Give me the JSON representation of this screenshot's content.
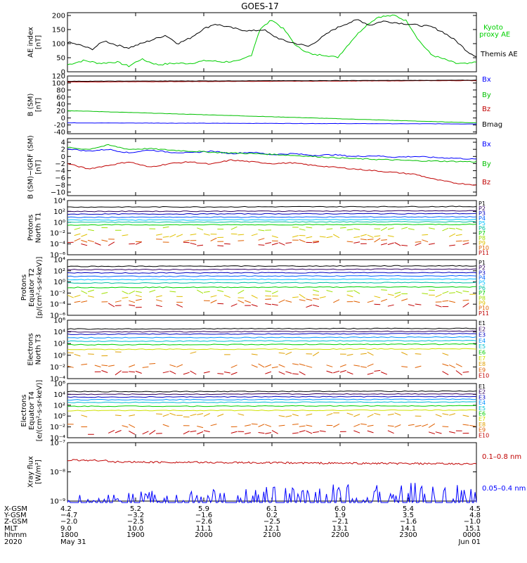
{
  "title": "GOES-17",
  "colors": {
    "black": "#000000",
    "blue": "#0000ff",
    "green": "#00c000",
    "red": "#c00000",
    "kyoto_green": "#00d000",
    "xray_red": "#c00000",
    "xray_blue": "#0000ff"
  },
  "chart_data": [
    {
      "type": "line",
      "panel": "ae",
      "ylabel": [
        "AE index",
        "[nT]"
      ],
      "ylim": [
        0,
        210
      ],
      "yticks": [
        0,
        50,
        100,
        150,
        200
      ],
      "ytick_labels": [
        "0",
        "50",
        "100",
        "150",
        "200"
      ],
      "series": [
        {
          "name": "Kyoto proxy AE",
          "legend": [
            "Kyoto",
            "proxy AE"
          ],
          "color": "#00d000",
          "x": [
            0,
            0.04,
            0.08,
            0.12,
            0.15,
            0.18,
            0.22,
            0.26,
            0.3,
            0.34,
            0.38,
            0.42,
            0.45,
            0.47,
            0.5,
            0.53,
            0.56,
            0.6,
            0.63,
            0.66,
            0.7,
            0.73,
            0.76,
            0.8,
            0.83,
            0.86,
            0.89,
            0.92,
            0.95,
            0.98,
            1
          ],
          "y": [
            25,
            40,
            30,
            35,
            20,
            45,
            25,
            30,
            30,
            40,
            35,
            38,
            60,
            150,
            185,
            150,
            90,
            60,
            60,
            50,
            120,
            165,
            195,
            200,
            180,
            110,
            60,
            45,
            30,
            28,
            35
          ]
        },
        {
          "name": "Themis AE",
          "legend": [
            "Themis AE"
          ],
          "color": "#000000",
          "x": [
            0,
            0.03,
            0.06,
            0.09,
            0.12,
            0.15,
            0.18,
            0.21,
            0.24,
            0.27,
            0.3,
            0.33,
            0.36,
            0.39,
            0.42,
            0.45,
            0.48,
            0.5,
            0.53,
            0.56,
            0.59,
            0.62,
            0.65,
            0.68,
            0.71,
            0.74,
            0.77,
            0.8,
            0.83,
            0.86,
            0.89,
            0.92,
            0.95,
            0.98,
            1
          ],
          "y": [
            105,
            95,
            80,
            110,
            95,
            85,
            100,
            115,
            130,
            100,
            120,
            150,
            170,
            160,
            150,
            145,
            150,
            130,
            110,
            100,
            90,
            120,
            150,
            170,
            185,
            165,
            180,
            175,
            170,
            165,
            160,
            140,
            110,
            70,
            55
          ]
        }
      ]
    },
    {
      "type": "line",
      "panel": "bsm",
      "ylabel": [
        "B (SM)",
        "[nT]"
      ],
      "ylim": [
        -45,
        120
      ],
      "yticks": [
        -40,
        -20,
        0,
        20,
        40,
        60,
        80,
        100,
        120
      ],
      "ytick_labels": [
        "-40",
        "-20",
        "0",
        "20",
        "40",
        "60",
        "80",
        "100",
        "120"
      ],
      "series": [
        {
          "name": "Bx",
          "color": "#0000ff",
          "x": [
            0,
            1
          ],
          "y": [
            -14,
            -17
          ]
        },
        {
          "name": "By",
          "color": "#00c000",
          "x": [
            0,
            1
          ],
          "y": [
            21,
            -14
          ]
        },
        {
          "name": "Bz",
          "color": "#c00000",
          "x": [
            0,
            1
          ],
          "y": [
            103,
            107
          ]
        },
        {
          "name": "Bmag",
          "color": "#000000",
          "x": [
            0,
            1
          ],
          "y": [
            105,
            108
          ]
        }
      ]
    },
    {
      "type": "line",
      "panel": "bigrf",
      "ylabel": [
        "B (SM)−IGRF (SM)",
        "[nT]"
      ],
      "ylim": [
        -11,
        5
      ],
      "yticks": [
        -10,
        -8,
        -6,
        -4,
        -2,
        0,
        2,
        4
      ],
      "ytick_labels": [
        "−10",
        "−8",
        "−6",
        "−4",
        "−2",
        "0",
        "2",
        "4"
      ],
      "series": [
        {
          "name": "Bx",
          "color": "#0000ff",
          "x": [
            0,
            0.05,
            0.1,
            0.15,
            0.2,
            0.25,
            0.3,
            0.35,
            0.4,
            0.45,
            0.5,
            0.55,
            0.6,
            0.65,
            0.7,
            0.75,
            0.8,
            0.85,
            0.9,
            0.95,
            1
          ],
          "y": [
            2.2,
            1.5,
            2.0,
            1.0,
            1.8,
            1.2,
            1.0,
            1.5,
            0.8,
            1.2,
            0.5,
            0.8,
            0.3,
            0.5,
            0.0,
            0.2,
            -0.2,
            0.0,
            -0.3,
            -0.5,
            -0.8
          ]
        },
        {
          "name": "By",
          "color": "#00c000",
          "x": [
            0,
            0.05,
            0.1,
            0.15,
            0.2,
            0.25,
            0.3,
            0.35,
            0.4,
            0.45,
            0.5,
            0.55,
            0.6,
            0.65,
            0.7,
            0.75,
            0.8,
            0.85,
            0.9,
            0.95,
            1
          ],
          "y": [
            2.5,
            2.0,
            3.2,
            2.0,
            2.2,
            1.8,
            1.5,
            1.2,
            1.0,
            0.8,
            0.6,
            0.3,
            0.0,
            -0.3,
            -0.6,
            -0.8,
            -1.0,
            -1.2,
            -1.3,
            -1.4,
            -1.5
          ]
        },
        {
          "name": "Bz",
          "color": "#c00000",
          "x": [
            0,
            0.05,
            0.1,
            0.15,
            0.2,
            0.25,
            0.3,
            0.35,
            0.4,
            0.45,
            0.5,
            0.55,
            0.6,
            0.65,
            0.7,
            0.75,
            0.8,
            0.85,
            0.9,
            0.95,
            1
          ],
          "y": [
            -2.0,
            -3.5,
            -2.5,
            -1.5,
            -3.0,
            -2.0,
            -1.5,
            -2.2,
            -1.0,
            -1.5,
            -2.0,
            -1.8,
            -2.5,
            -3.0,
            -3.5,
            -4.0,
            -4.5,
            -5.0,
            -6.5,
            -7.5,
            -8.0
          ]
        }
      ]
    },
    {
      "type": "line",
      "panel": "pn",
      "log": true,
      "ylabel": [
        "Protons",
        "North T1"
      ],
      "ylim_log10": [
        -6,
        4
      ],
      "yticks_log10": [
        -6,
        -4,
        -2,
        0,
        2,
        4
      ],
      "levels_log10": [
        2.8,
        2.0,
        1.5,
        0.9,
        0.4,
        0.0,
        -0.5,
        -1.2,
        -2.5,
        -3.3,
        -4.0
      ],
      "series_names": [
        "P1",
        "P2",
        "P3",
        "P4",
        "P5",
        "P6",
        "P7",
        "P8",
        "P9",
        "P10",
        "P11"
      ],
      "series_colors": [
        "#000000",
        "#300060",
        "#0000c0",
        "#0060ff",
        "#00c0ff",
        "#00c0a0",
        "#00d000",
        "#a0e000",
        "#e0c000",
        "#e06000",
        "#c00000"
      ]
    },
    {
      "type": "line",
      "panel": "pe",
      "log": true,
      "ylabel": [
        "Protons",
        "Equator T2",
        "[p/(cm²-s-sr-keV)]"
      ],
      "ylim_log10": [
        -6,
        4
      ],
      "yticks_log10": [
        -6,
        -4,
        -2,
        0,
        2,
        4
      ],
      "levels_log10": [
        2.8,
        2.2,
        1.6,
        1.0,
        0.4,
        -0.2,
        -1.0,
        -1.8,
        -2.6,
        -3.4,
        -4.2
      ],
      "series_names": [
        "P1",
        "P2",
        "P3",
        "P4",
        "P5",
        "P6",
        "P7",
        "P8",
        "P9",
        "P10",
        "P11"
      ],
      "series_colors": [
        "#000000",
        "#300060",
        "#0000c0",
        "#0060ff",
        "#00c0ff",
        "#00c0a0",
        "#00d000",
        "#a0e000",
        "#e0c000",
        "#e06000",
        "#c00000"
      ]
    },
    {
      "type": "line",
      "panel": "en",
      "log": true,
      "ylabel": [
        "Electrons",
        "North T3"
      ],
      "ylim_log10": [
        -4,
        6
      ],
      "yticks_log10": [
        -4,
        -2,
        0,
        2,
        4,
        6
      ],
      "levels_log10": [
        4.5,
        4.0,
        3.6,
        3.0,
        2.4,
        1.8,
        1.0,
        0.2,
        -1.8,
        -3.0
      ],
      "series_names": [
        "E1",
        "E2",
        "E3",
        "E4",
        "E5",
        "E6",
        "E7",
        "E8",
        "E9",
        "E10"
      ],
      "series_colors": [
        "#000000",
        "#300060",
        "#0000c0",
        "#0090ff",
        "#00c0d0",
        "#00d000",
        "#d0e000",
        "#e0a000",
        "#e06000",
        "#c00000"
      ]
    },
    {
      "type": "line",
      "panel": "ee",
      "log": true,
      "ylabel": [
        "Electrons",
        "Equator T4",
        "[e/(cm²-s-sr-keV)]"
      ],
      "ylim_log10": [
        -4,
        6
      ],
      "yticks_log10": [
        -4,
        -2,
        0,
        2,
        4,
        6
      ],
      "levels_log10": [
        4.5,
        4.0,
        3.5,
        3.0,
        2.5,
        1.8,
        1.0,
        0.2,
        -1.8,
        -3.0
      ],
      "series_names": [
        "E1",
        "E2",
        "E3",
        "E4",
        "E5",
        "E6",
        "E7",
        "E8",
        "E9",
        "E10"
      ],
      "series_colors": [
        "#000000",
        "#300060",
        "#0000c0",
        "#0090ff",
        "#00c0d0",
        "#00d000",
        "#d0e000",
        "#e0a000",
        "#e06000",
        "#c00000"
      ]
    },
    {
      "type": "line",
      "panel": "xray",
      "log": true,
      "ylabel": [
        "Xray flux",
        "[W/m²]"
      ],
      "ylim_log10": [
        -9,
        -7
      ],
      "yticks_log10": [
        -9,
        -8,
        -7
      ],
      "series": [
        {
          "name": "0.1–0.8 nm",
          "color": "#c00000",
          "level_log10": -7.65
        },
        {
          "name": "0.05–0.4 nm",
          "color": "#0000ff",
          "level_log10": -8.95
        }
      ]
    }
  ],
  "legends": {
    "ae": [
      {
        "text": "Kyoto",
        "color": "#00d000"
      },
      {
        "text": "proxy AE",
        "color": "#00d000"
      },
      {
        "text": "Themis AE",
        "color": "#000000"
      }
    ],
    "bsm": [
      {
        "text": "Bx",
        "color": "#0000ff"
      },
      {
        "text": "By",
        "color": "#00c000"
      },
      {
        "text": "Bz",
        "color": "#c00000"
      },
      {
        "text": "Bmag",
        "color": "#000000"
      }
    ],
    "bigrf": [
      {
        "text": "Bx",
        "color": "#0000ff"
      },
      {
        "text": "By",
        "color": "#00c000"
      },
      {
        "text": "Bz",
        "color": "#c00000"
      }
    ],
    "xray": [
      {
        "text": "0.1–0.8 nm",
        "color": "#c00000"
      },
      {
        "text": "0.05–0.4 nm",
        "color": "#0000ff"
      }
    ]
  },
  "footer": {
    "row_labels": [
      "X-GSM",
      "Y-GSM",
      "Z-GSM",
      "MLT",
      "hhmm",
      "2020"
    ],
    "columns": [
      [
        "4.2",
        "−4.7",
        "−2.0",
        "9.0",
        "1800",
        "May 31"
      ],
      [
        "5.2",
        "−3.2",
        "−2.5",
        "10.0",
        "1900",
        ""
      ],
      [
        "5.9",
        "−1.6",
        "−2.6",
        "11.1",
        "2000",
        ""
      ],
      [
        "6.1",
        "0.2",
        "−2.5",
        "12.1",
        "2100",
        ""
      ],
      [
        "6.0",
        "1.9",
        "−2.1",
        "13.1",
        "2200",
        ""
      ],
      [
        "5.4",
        "3.5",
        "−1.6",
        "14.1",
        "2300",
        ""
      ],
      [
        "4.5",
        "4.8",
        "−1.0",
        "15.1",
        "0000",
        "Jun 01"
      ]
    ]
  }
}
